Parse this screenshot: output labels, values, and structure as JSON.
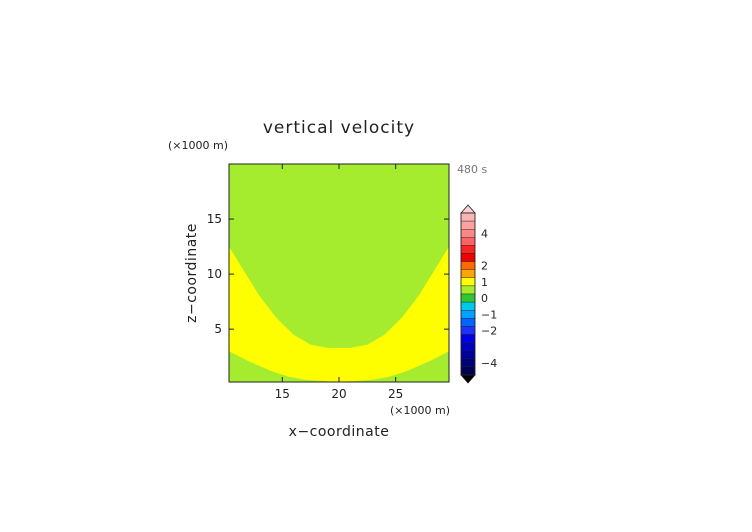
{
  "chart_data": {
    "type": "heatmap",
    "title": "vertical velocity",
    "xlabel": "x−coordinate",
    "ylabel": "z−coordinate",
    "x_unit": "(×1000 m)",
    "y_unit": "(×1000 m)",
    "time_label": "480 s",
    "xlim": [
      10.3,
      29.7
    ],
    "ylim": [
      0.2,
      20
    ],
    "x_ticks": [
      15,
      20,
      25
    ],
    "y_ticks": [
      5,
      10,
      15
    ],
    "field_regions": [
      {
        "name": "",
        "color": "#a6ec2e",
        "band": "0 to 0.5"
      },
      {
        "name": "",
        "color": "#fefe00",
        "band": "0.5 to 1"
      }
    ],
    "yellow_region_boundary": {
      "upper_edge_x": [
        10.3,
        11.5,
        13,
        14.5,
        16,
        17.5,
        19,
        20,
        21,
        22.5,
        24,
        25.5,
        27,
        28.5,
        29.7
      ],
      "upper_edge_z": [
        12.5,
        10.5,
        8.0,
        6.0,
        4.5,
        3.6,
        3.3,
        3.3,
        3.3,
        3.6,
        4.5,
        6.0,
        8.0,
        10.5,
        12.5
      ],
      "lower_edge_x": [
        10.3,
        12,
        14,
        15.5,
        17,
        20,
        23,
        24.5,
        26,
        28,
        29.7
      ],
      "lower_edge_z": [
        3.0,
        2.1,
        1.2,
        0.7,
        0.4,
        0.2,
        0.4,
        0.7,
        1.2,
        2.1,
        3.0
      ]
    },
    "colorbar": {
      "labels": [
        "4",
        "2",
        "1",
        "0",
        "−1",
        "−2",
        "−4"
      ],
      "label_values": [
        4,
        2,
        1,
        0,
        -1,
        -2,
        -4
      ],
      "segments": [
        {
          "from": 4.5,
          "to": 5.0,
          "color": "#fbb4b4"
        },
        {
          "from": 4.0,
          "to": 4.5,
          "color": "#fba2a2"
        },
        {
          "from": 3.5,
          "to": 4.0,
          "color": "#fb8888"
        },
        {
          "from": 3.0,
          "to": 3.5,
          "color": "#fb6464"
        },
        {
          "from": 2.5,
          "to": 3.0,
          "color": "#fb2222"
        },
        {
          "from": 2.0,
          "to": 2.5,
          "color": "#ec0000"
        },
        {
          "from": 1.5,
          "to": 2.0,
          "color": "#fb6a00"
        },
        {
          "from": 1.0,
          "to": 1.5,
          "color": "#fba600"
        },
        {
          "from": 0.5,
          "to": 1.0,
          "color": "#fefe00"
        },
        {
          "from": 0.0,
          "to": 0.5,
          "color": "#a6ec2e"
        },
        {
          "from": -0.5,
          "to": 0.0,
          "color": "#2ec82e"
        },
        {
          "from": -1.0,
          "to": -0.5,
          "color": "#00c8e6"
        },
        {
          "from": -1.5,
          "to": -1.0,
          "color": "#00a0ff"
        },
        {
          "from": -2.0,
          "to": -1.5,
          "color": "#0064ff"
        },
        {
          "from": -2.5,
          "to": -2.0,
          "color": "#1e32ff"
        },
        {
          "from": -3.0,
          "to": -2.5,
          "color": "#0000e6"
        },
        {
          "from": -3.5,
          "to": -3.0,
          "color": "#0000c0"
        },
        {
          "from": -4.0,
          "to": -3.5,
          "color": "#00009a"
        },
        {
          "from": -4.5,
          "to": -4.0,
          "color": "#000078"
        },
        {
          "from": -5.0,
          "to": -4.5,
          "color": "#000050"
        }
      ],
      "over_color": "#fbd0d0",
      "under_color": "#000000"
    }
  }
}
